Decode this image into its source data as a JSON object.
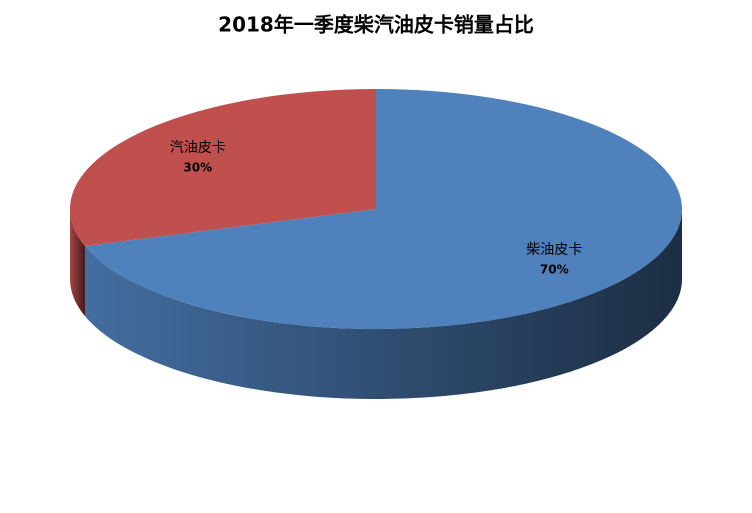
{
  "chart_data": {
    "type": "pie",
    "title": "2018年一季度柴汽油皮卡销量占比",
    "categories": [
      "柴油皮卡",
      "汽油皮卡"
    ],
    "values": [
      70,
      30
    ],
    "value_labels": [
      "70%",
      "30%"
    ],
    "colors": [
      "#4f81bd",
      "#c0504d"
    ]
  }
}
